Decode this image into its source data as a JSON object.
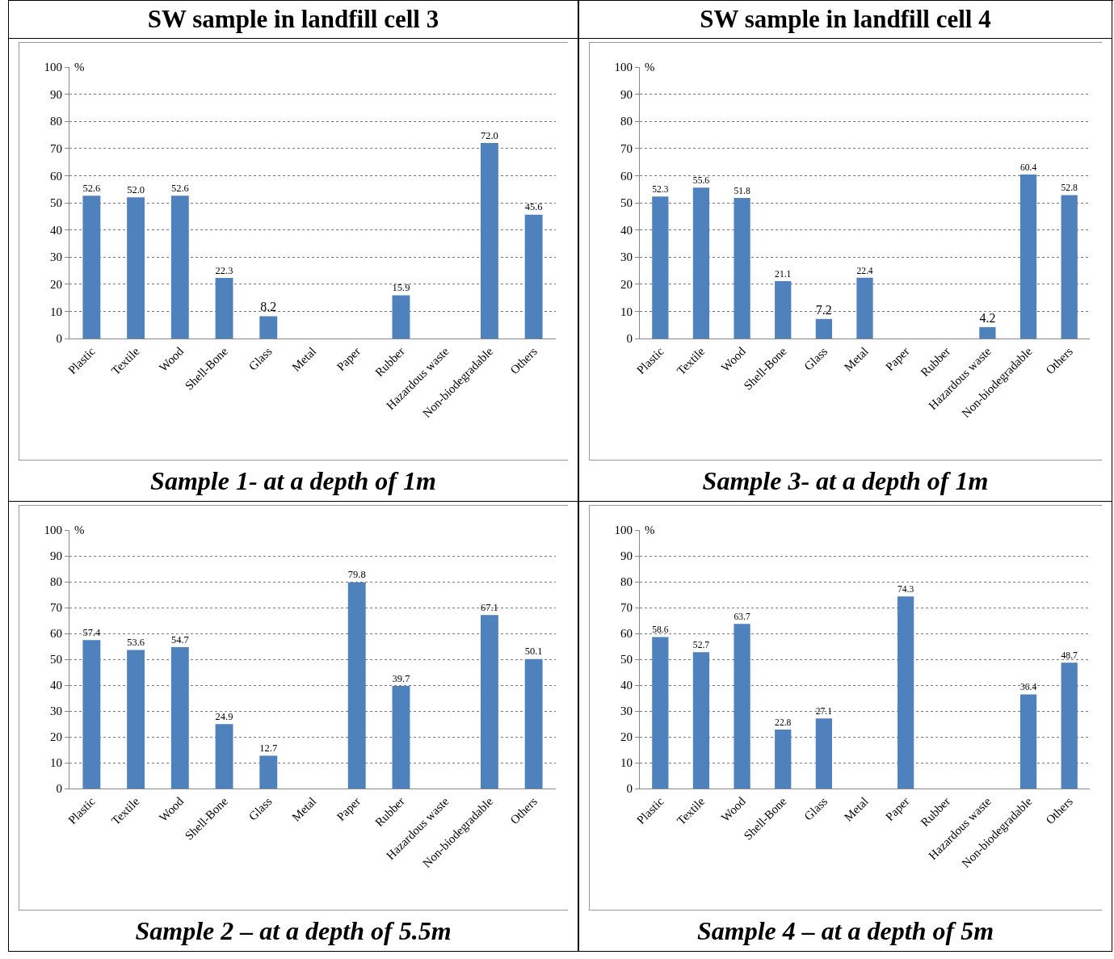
{
  "chart_data": [
    {
      "type": "bar",
      "title": "SW sample in landfill cell 3",
      "ylabel": "%",
      "categories": [
        "Plastic",
        "Textile",
        "Wood",
        "Shell-Bone",
        "Glass",
        "Metal",
        "Paper",
        "Rubber",
        "Hazardous waste",
        "Non-biodegradable",
        "Others"
      ],
      "values": [
        52.6,
        52.0,
        52.6,
        22.3,
        8.2,
        null,
        null,
        15.9,
        null,
        72.0,
        45.6
      ],
      "value_labels": [
        "52.6",
        "52.0",
        "52.6",
        "22.3",
        "8.2",
        null,
        null,
        "15.9",
        null,
        "72.0",
        "45.6"
      ],
      "color": "#4f81bd",
      "ylim": [
        0,
        100
      ],
      "yticks": [
        0,
        10,
        20,
        30,
        40,
        50,
        60,
        70,
        80,
        90,
        100
      ],
      "grid": "y",
      "legend": false,
      "annotations": [
        "Sample 1- at a depth of 1m"
      ]
    },
    {
      "type": "bar",
      "title": "SW sample in landfill cell 4",
      "ylabel": "%",
      "categories": [
        "Plastic",
        "Textile",
        "Wood",
        "Shell-Bone",
        "Glass",
        "Metal",
        "Paper",
        "Rubber",
        "Hazardous waste",
        "Non-biodegradable",
        "Others"
      ],
      "values": [
        52.3,
        55.6,
        51.8,
        21.1,
        7.2,
        22.4,
        null,
        null,
        4.2,
        60.4,
        52.8
      ],
      "value_labels": [
        "52.3",
        "55.6",
        "51.8",
        "21.1",
        "7.2",
        "22.4",
        null,
        null,
        "4.2",
        "60.4",
        "52.8"
      ],
      "color": "#4f81bd",
      "ylim": [
        0,
        100
      ],
      "yticks": [
        0,
        10,
        20,
        30,
        40,
        50,
        60,
        70,
        80,
        90,
        100
      ],
      "grid": "y",
      "legend": false,
      "annotations": [
        "Sample 3- at a depth of 1m"
      ]
    },
    {
      "type": "bar",
      "ylabel": "%",
      "categories": [
        "Plastic",
        "Textile",
        "Wood",
        "Shell-Bone",
        "Glass",
        "Metal",
        "Paper",
        "Rubber",
        "Hazardous waste",
        "Non-biodegradable",
        "Others"
      ],
      "values": [
        57.4,
        53.6,
        54.7,
        24.9,
        12.7,
        null,
        79.8,
        39.7,
        null,
        67.1,
        50.1
      ],
      "value_labels": [
        "57.4",
        "53.6",
        "54.7",
        "24.9",
        "12.7",
        null,
        "79.8",
        "39.7",
        null,
        "67.1",
        "50.1"
      ],
      "color": "#4f81bd",
      "ylim": [
        0,
        100
      ],
      "yticks": [
        0,
        10,
        20,
        30,
        40,
        50,
        60,
        70,
        80,
        90,
        100
      ],
      "grid": "y",
      "legend": false,
      "annotations": [
        "Sample 2 – at a depth of 5.5m"
      ]
    },
    {
      "type": "bar",
      "ylabel": "%",
      "categories": [
        "Plastic",
        "Textile",
        "Wood",
        "Shell-Bone",
        "Glass",
        "Metal",
        "Paper",
        "Rubber",
        "Hazardous waste",
        "Non-biodegradable",
        "Others"
      ],
      "values": [
        58.6,
        52.7,
        63.7,
        22.8,
        27.1,
        null,
        74.3,
        null,
        null,
        36.4,
        48.7
      ],
      "value_labels": [
        "58.6",
        "52.7",
        "63.7",
        "22.8",
        "27.1",
        null,
        "74.3",
        null,
        null,
        "36.4",
        "48.7"
      ],
      "color": "#4f81bd",
      "ylim": [
        0,
        100
      ],
      "yticks": [
        0,
        10,
        20,
        30,
        40,
        50,
        60,
        70,
        80,
        90,
        100
      ],
      "grid": "y",
      "legend": false,
      "annotations": [
        "Sample 4 – at a depth of 5m"
      ]
    }
  ]
}
